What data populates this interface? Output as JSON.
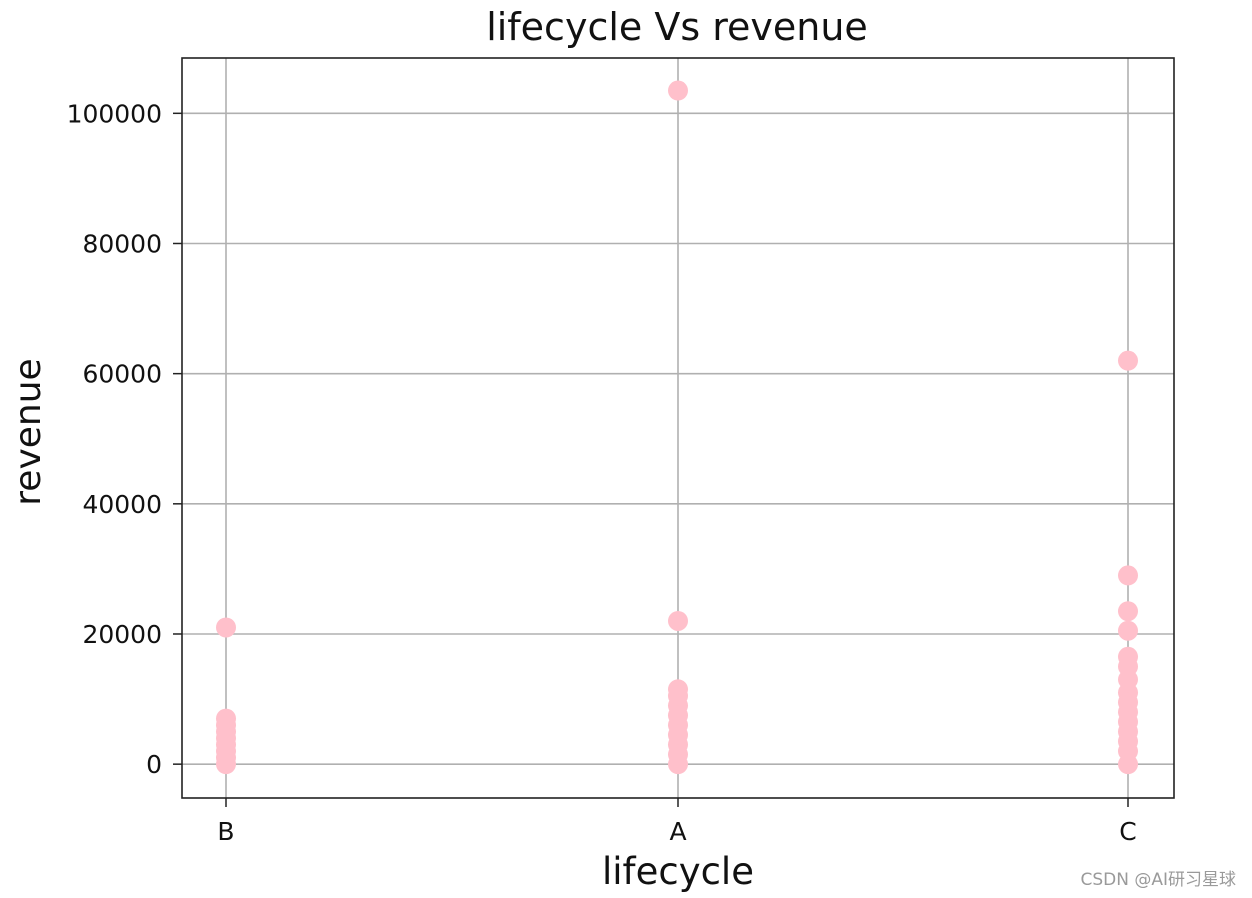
{
  "chart_data": {
    "type": "scatter",
    "title": "lifecycle Vs revenue",
    "xlabel": "lifecycle",
    "ylabel": "revenue",
    "categories": [
      "B",
      "A",
      "C"
    ],
    "ylim": [
      -5200,
      108500
    ],
    "yticks": [
      0,
      20000,
      40000,
      60000,
      80000,
      100000
    ],
    "grid": true,
    "marker_color": "#ffc0cb",
    "points": [
      {
        "x": "B",
        "y": 21000
      },
      {
        "x": "B",
        "y": 7000
      },
      {
        "x": "B",
        "y": 6000
      },
      {
        "x": "B",
        "y": 5000
      },
      {
        "x": "B",
        "y": 4000
      },
      {
        "x": "B",
        "y": 3000
      },
      {
        "x": "B",
        "y": 2000
      },
      {
        "x": "B",
        "y": 1000
      },
      {
        "x": "B",
        "y": 0
      },
      {
        "x": "A",
        "y": 103500
      },
      {
        "x": "A",
        "y": 22000
      },
      {
        "x": "A",
        "y": 11500
      },
      {
        "x": "A",
        "y": 10500
      },
      {
        "x": "A",
        "y": 9000
      },
      {
        "x": "A",
        "y": 7500
      },
      {
        "x": "A",
        "y": 6000
      },
      {
        "x": "A",
        "y": 4500
      },
      {
        "x": "A",
        "y": 3000
      },
      {
        "x": "A",
        "y": 1500
      },
      {
        "x": "A",
        "y": 0
      },
      {
        "x": "C",
        "y": 62000
      },
      {
        "x": "C",
        "y": 29000
      },
      {
        "x": "C",
        "y": 23500
      },
      {
        "x": "C",
        "y": 20500
      },
      {
        "x": "C",
        "y": 16500
      },
      {
        "x": "C",
        "y": 15000
      },
      {
        "x": "C",
        "y": 13000
      },
      {
        "x": "C",
        "y": 11000
      },
      {
        "x": "C",
        "y": 9500
      },
      {
        "x": "C",
        "y": 8000
      },
      {
        "x": "C",
        "y": 6500
      },
      {
        "x": "C",
        "y": 5000
      },
      {
        "x": "C",
        "y": 3500
      },
      {
        "x": "C",
        "y": 2000
      },
      {
        "x": "C",
        "y": 0
      }
    ]
  },
  "watermark": "CSDN @AI研习星球"
}
